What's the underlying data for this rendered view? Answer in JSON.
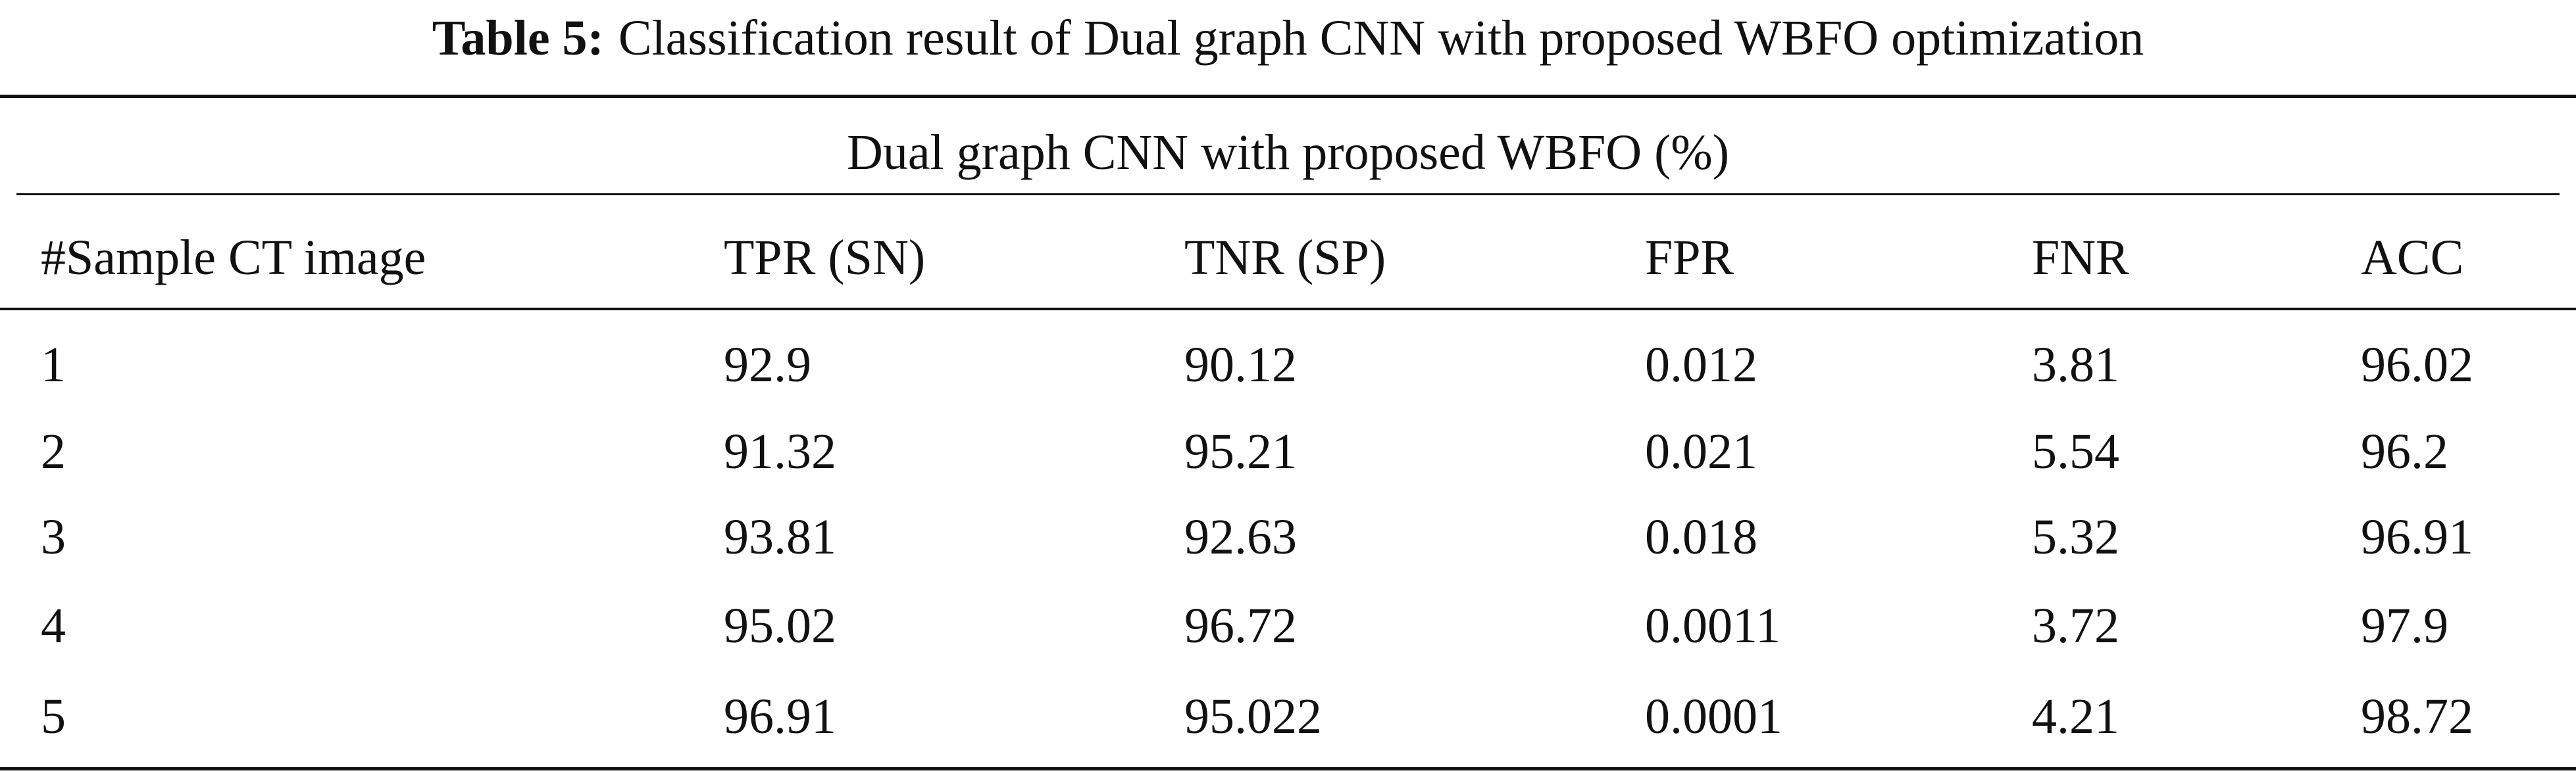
{
  "caption": {
    "label": "Table 5:",
    "text": "Classification result of Dual graph CNN with proposed WBFO optimization"
  },
  "table": {
    "group_header": "Dual graph CNN with proposed WBFO (%)",
    "columns": [
      "#Sample CT image",
      "TPR (SN)",
      "TNR (SP)",
      "FPR",
      "FNR",
      "ACC"
    ],
    "rows": [
      [
        "1",
        "92.9",
        "90.12",
        "0.012",
        "3.81",
        "96.02"
      ],
      [
        "2",
        "91.32",
        "95.21",
        "0.021",
        "5.54",
        "96.2"
      ],
      [
        "3",
        "93.81",
        "92.63",
        "0.018",
        "5.32",
        "96.91"
      ],
      [
        "4",
        "95.02",
        "96.72",
        "0.0011",
        "3.72",
        "97.9"
      ],
      [
        "5",
        "96.91",
        "95.022",
        "0.0001",
        "4.21",
        "98.72"
      ]
    ]
  }
}
